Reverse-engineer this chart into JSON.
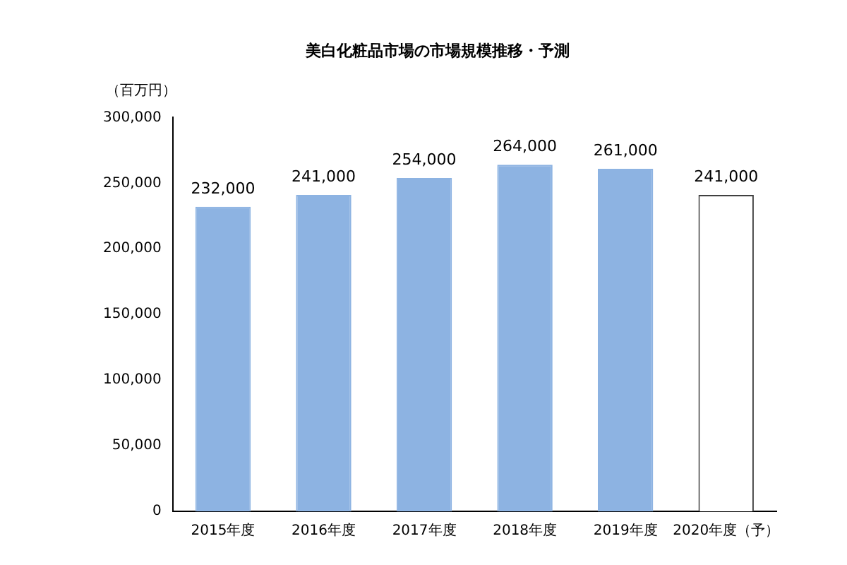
{
  "chart_data": {
    "type": "bar",
    "title": "美白化粧品市場の市場規模推移・予測",
    "ylabel": "（百万円）",
    "categories": [
      "2015年度",
      "2016年度",
      "2017年度",
      "2018年度",
      "2019年度",
      "2020年度（予）"
    ],
    "values": [
      232000,
      241000,
      254000,
      264000,
      261000,
      241000
    ],
    "colors": [
      "#8db3e2",
      "#8db3e2",
      "#8db3e2",
      "#8db3e2",
      "#8db3e2",
      "#ffffff"
    ],
    "value_labels": [
      "232,000",
      "241,000",
      "254,000",
      "264,000",
      "261,000",
      "241,000"
    ],
    "ylim": [
      0,
      300000
    ],
    "yticks": [
      {
        "value": 0,
        "label": "0"
      },
      {
        "value": 50000,
        "label": "50,000"
      },
      {
        "value": 100000,
        "label": "100,000"
      },
      {
        "value": 150000,
        "label": "150,000"
      },
      {
        "value": 200000,
        "label": "200,000"
      },
      {
        "value": 250000,
        "label": "250,000"
      },
      {
        "value": 300000,
        "label": "300,000"
      }
    ],
    "grid": false,
    "legend": false
  }
}
